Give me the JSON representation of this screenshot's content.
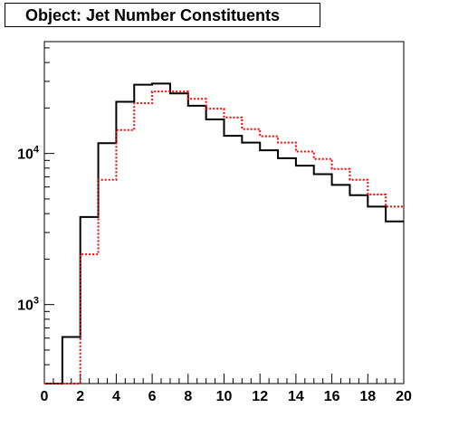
{
  "chart_data": {
    "type": "line",
    "title": "Object: Jet Number Constituents",
    "xlabel": "",
    "ylabel": "",
    "x_scale": "linear",
    "y_scale": "log",
    "xlim": [
      0,
      20
    ],
    "ylim": [
      300,
      55000
    ],
    "bin_edges": [
      0,
      1,
      2,
      3,
      4,
      5,
      6,
      7,
      8,
      9,
      10,
      11,
      12,
      13,
      14,
      15,
      16,
      17,
      18,
      19,
      20
    ],
    "x_ticks": [
      "0",
      "2",
      "4",
      "6",
      "8",
      "10",
      "12",
      "14",
      "16",
      "18",
      "20"
    ],
    "y_tick_labels": [
      {
        "value": 1000,
        "base": "10",
        "exp": "3"
      },
      {
        "value": 10000,
        "base": "10",
        "exp": "4"
      }
    ],
    "grid": false,
    "series": [
      {
        "color": "#000000",
        "style": "solid",
        "values": [
          300,
          610,
          3800,
          11700,
          22000,
          28500,
          29000,
          25000,
          20700,
          16800,
          13100,
          11800,
          10500,
          9300,
          8300,
          7300,
          6200,
          5300,
          4450,
          3550
        ]
      },
      {
        "color": "#ff0000",
        "style": "dotted",
        "values": [
          300,
          300,
          2150,
          6700,
          14300,
          21500,
          25700,
          25700,
          23000,
          19800,
          17300,
          14500,
          13000,
          11800,
          10300,
          9200,
          7900,
          6700,
          5350,
          4450
        ]
      }
    ]
  }
}
